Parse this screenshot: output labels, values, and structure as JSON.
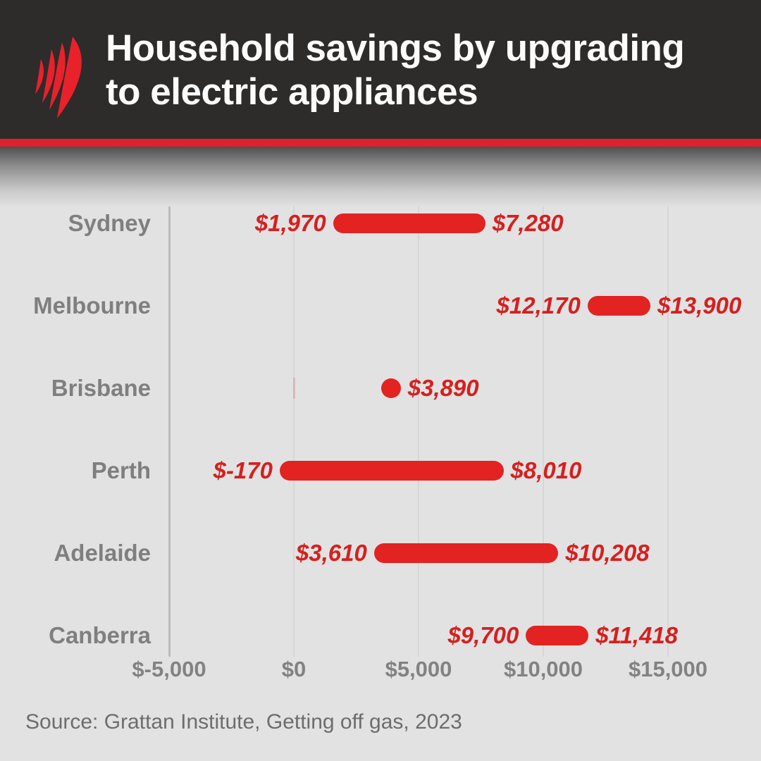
{
  "header": {
    "title": "Household savings by upgrading to electric appliances",
    "title_lines": [
      "Household savings by upgrading",
      "to electric appliances"
    ],
    "logo": "sbs-logo",
    "brand_red": "#e0202a",
    "background": "#2d2c2b"
  },
  "chart_data": {
    "type": "bar",
    "subtype": "horizontal-range-dumbbell",
    "title": "Household savings by upgrading to electric appliances",
    "unit": "$ (AUD)",
    "categories": [
      "Sydney",
      "Melbourne",
      "Brisbane",
      "Perth",
      "Adelaide",
      "Canberra"
    ],
    "series": [
      {
        "city": "Sydney",
        "low": 1970,
        "high": 7280,
        "low_label": "$1,970",
        "high_label": "$7,280"
      },
      {
        "city": "Melbourne",
        "low": 12170,
        "high": 13900,
        "low_label": "$12,170",
        "high_label": "$13,900"
      },
      {
        "city": "Brisbane",
        "value": 3890,
        "value_label": "$3,890",
        "single_point": true,
        "faint_zero_tick": true
      },
      {
        "city": "Perth",
        "low": -170,
        "high": 8010,
        "low_label": "$-170",
        "high_label": "$8,010"
      },
      {
        "city": "Adelaide",
        "low": 3610,
        "high": 10208,
        "low_label": "$3,610",
        "high_label": "$10,208"
      },
      {
        "city": "Canberra",
        "low": 9700,
        "high": 11418,
        "low_label": "$9,700",
        "high_label": "$11,418"
      }
    ],
    "x_axis": {
      "ticks": [
        -5000,
        0,
        5000,
        10000,
        15000
      ],
      "tick_labels": [
        "$-5,000",
        "$0",
        "$5,000",
        "$10,000",
        "$15,000"
      ],
      "range": [
        -5000,
        16800
      ]
    },
    "grid": true,
    "legend": "none",
    "bar_color": "#e22322",
    "value_label_color": "#d5201f",
    "category_label_color": "#7f7f7f"
  },
  "source": {
    "text": "Source: Grattan Institute, Getting off gas, 2023"
  }
}
